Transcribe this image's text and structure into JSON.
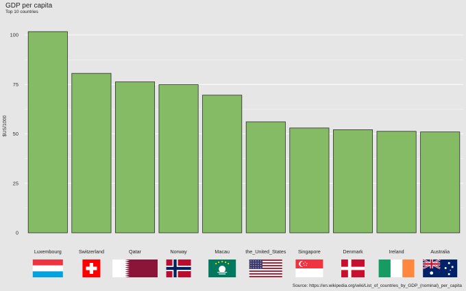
{
  "chart_data": {
    "type": "bar",
    "title": "GDP per capita",
    "subtitle": "Top 10 countries",
    "ylabel": "$US/1000",
    "xlabel": "",
    "categories": [
      "Luxembourg",
      "Switzerland",
      "Qatar",
      "Norway",
      "Macau",
      "the_United_States",
      "Singapore",
      "Denmark",
      "Ireland",
      "Australia"
    ],
    "values": [
      101.7,
      80.6,
      76.3,
      74.9,
      69.6,
      56.1,
      53.0,
      52.1,
      51.3,
      51.0
    ],
    "ylim": [
      0,
      108
    ],
    "yticks": [
      0,
      25,
      50,
      75,
      100
    ],
    "grid": true,
    "bar_color": "#86bb66",
    "bar_edge": "#2a2a2a",
    "caption": "Source: https://en.wikipedia.org/wiki/List_of_countries_by_GDP_(nominal)_per_capita",
    "flags": [
      "luxembourg-flag",
      "switzerland-flag",
      "qatar-flag",
      "norway-flag",
      "macau-flag",
      "united-states-flag",
      "singapore-flag",
      "denmark-flag",
      "ireland-flag",
      "australia-flag"
    ]
  }
}
